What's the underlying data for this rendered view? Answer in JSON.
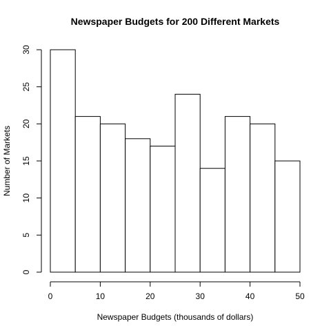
{
  "chart_data": {
    "type": "bar",
    "title": "Newspaper Budgets for 200 Different Markets",
    "xlabel": "Newspaper Budgets (thousands of dollars)",
    "ylabel": "Number of Markets",
    "bins": [
      {
        "start": 0,
        "end": 5,
        "count": 30
      },
      {
        "start": 5,
        "end": 10,
        "count": 21
      },
      {
        "start": 10,
        "end": 15,
        "count": 20
      },
      {
        "start": 15,
        "end": 20,
        "count": 18
      },
      {
        "start": 20,
        "end": 25,
        "count": 17
      },
      {
        "start": 25,
        "end": 30,
        "count": 24
      },
      {
        "start": 30,
        "end": 35,
        "count": 14
      },
      {
        "start": 35,
        "end": 40,
        "count": 21
      },
      {
        "start": 40,
        "end": 45,
        "count": 20
      },
      {
        "start": 45,
        "end": 50,
        "count": 15
      }
    ],
    "xlim": [
      0,
      50
    ],
    "ylim": [
      0,
      30
    ],
    "x_ticks": [
      0,
      10,
      20,
      30,
      40,
      50
    ],
    "y_ticks": [
      0,
      5,
      10,
      15,
      20,
      25,
      30
    ],
    "grid": false,
    "bar_fill_color": "#ffffff",
    "bar_edge_color": "#000000"
  }
}
